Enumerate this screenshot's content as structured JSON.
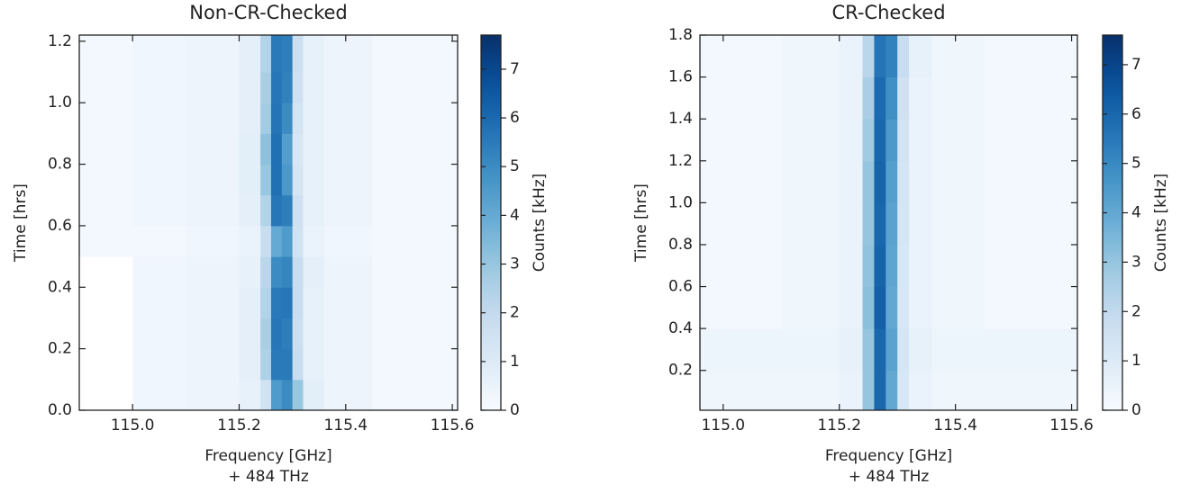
{
  "chart_data": [
    {
      "type": "heatmap",
      "title": "Non-CR-Checked",
      "xlabel": "Frequency [GHz]",
      "xlabel_offset": "+ 484 THz",
      "ylabel": "Time [hrs]",
      "colorbar_label": "Counts [kHz]",
      "colormap": "Blues",
      "xlim": [
        114.9,
        115.61
      ],
      "ylim": [
        0,
        1.22
      ],
      "clim": [
        0,
        7.7
      ],
      "xticks": [
        {
          "value": 115.0,
          "label": "115.0"
        },
        115.2,
        115.4,
        115.6
      ],
      "yticks": [
        {
          "value": 0,
          "label": "0.0"
        },
        0.2,
        0.4,
        0.6,
        0.8,
        {
          "value": 1,
          "label": "1.0"
        },
        1.2
      ],
      "cticks": [
        0,
        1,
        2,
        3,
        4,
        5,
        6,
        7
      ],
      "x_edges": [
        114.9,
        115.0,
        115.1,
        115.2,
        115.24,
        115.26,
        115.28,
        115.3,
        115.32,
        115.36,
        115.45,
        115.61
      ],
      "y_edges": [
        0,
        0.1,
        0.2,
        0.3,
        0.4,
        0.5,
        0.6,
        0.7,
        0.8,
        0.9,
        1.0,
        1.1,
        1.22
      ],
      "values": [
        [
          null,
          0.3,
          0.4,
          0.6,
          1.5,
          4.5,
          5.0,
          3.0,
          0.8,
          0.4,
          0.2
        ],
        [
          null,
          0.3,
          0.4,
          0.7,
          2.5,
          5.5,
          5.5,
          1.8,
          0.6,
          0.4,
          0.2
        ],
        [
          null,
          0.3,
          0.4,
          0.7,
          2.6,
          5.6,
          5.4,
          1.7,
          0.6,
          0.4,
          0.2
        ],
        [
          null,
          0.3,
          0.4,
          0.7,
          2.4,
          5.5,
          5.6,
          1.8,
          0.6,
          0.4,
          0.2
        ],
        [
          null,
          0.3,
          0.4,
          0.6,
          2.2,
          5.0,
          5.2,
          1.8,
          0.7,
          0.4,
          0.2
        ],
        [
          0.2,
          0.2,
          0.3,
          0.5,
          1.8,
          4.0,
          4.5,
          1.5,
          0.5,
          0.3,
          0.2
        ],
        [
          0.2,
          0.3,
          0.4,
          0.7,
          2.4,
          5.6,
          5.4,
          1.6,
          0.6,
          0.4,
          0.2
        ],
        [
          0.2,
          0.3,
          0.4,
          0.8,
          3.0,
          5.8,
          4.6,
          1.3,
          0.6,
          0.4,
          0.2
        ],
        [
          0.2,
          0.3,
          0.4,
          0.8,
          3.2,
          5.8,
          4.4,
          1.2,
          0.6,
          0.4,
          0.2
        ],
        [
          0.2,
          0.3,
          0.4,
          0.7,
          2.8,
          5.7,
          5.0,
          1.4,
          0.6,
          0.4,
          0.2
        ],
        [
          0.2,
          0.3,
          0.4,
          0.7,
          2.6,
          5.6,
          5.3,
          1.6,
          0.6,
          0.4,
          0.2
        ],
        [
          0.2,
          0.3,
          0.4,
          0.7,
          2.4,
          5.5,
          5.4,
          1.7,
          0.6,
          0.4,
          0.2
        ]
      ]
    },
    {
      "type": "heatmap",
      "title": "CR-Checked",
      "xlabel": "Frequency [GHz]",
      "xlabel_offset": "+ 484 THz",
      "ylabel": "Time [hrs]",
      "colorbar_label": "Counts [kHz]",
      "colormap": "Blues",
      "xlim": [
        114.96,
        115.61
      ],
      "ylim": [
        0.01,
        1.8
      ],
      "clim": [
        0,
        7.6
      ],
      "xticks": [
        {
          "value": 115.0,
          "label": "115.0"
        },
        115.2,
        115.4,
        115.6
      ],
      "yticks": [
        0.2,
        0.4,
        0.6,
        0.8,
        {
          "value": 1,
          "label": "1.0"
        },
        1.2,
        1.4,
        1.6,
        1.8
      ],
      "cticks": [
        0,
        1,
        2,
        3,
        4,
        5,
        6,
        7
      ],
      "x_edges": [
        114.96,
        115.0,
        115.1,
        115.2,
        115.24,
        115.26,
        115.28,
        115.3,
        115.32,
        115.36,
        115.45,
        115.61
      ],
      "y_edges": [
        0.01,
        0.2,
        0.4,
        0.6,
        0.8,
        1.0,
        1.2,
        1.4,
        1.6,
        1.8
      ],
      "values": [
        [
          0.3,
          0.3,
          0.3,
          0.5,
          3.0,
          6.0,
          4.0,
          1.2,
          0.5,
          0.3,
          0.3
        ],
        [
          0.4,
          0.4,
          0.4,
          0.6,
          3.0,
          6.0,
          4.2,
          1.3,
          0.6,
          0.4,
          0.4
        ],
        [
          0.2,
          0.2,
          0.3,
          0.5,
          3.2,
          6.2,
          4.0,
          1.2,
          0.5,
          0.3,
          0.2
        ],
        [
          0.2,
          0.2,
          0.3,
          0.5,
          3.1,
          6.1,
          4.1,
          1.2,
          0.5,
          0.3,
          0.2
        ],
        [
          0.2,
          0.2,
          0.3,
          0.5,
          3.0,
          6.0,
          4.2,
          1.3,
          0.5,
          0.3,
          0.2
        ],
        [
          0.2,
          0.2,
          0.3,
          0.5,
          3.0,
          6.1,
          4.3,
          1.3,
          0.5,
          0.3,
          0.2
        ],
        [
          0.2,
          0.2,
          0.3,
          0.5,
          2.8,
          6.0,
          4.5,
          1.4,
          0.5,
          0.3,
          0.2
        ],
        [
          0.2,
          0.2,
          0.3,
          0.5,
          2.6,
          5.9,
          4.8,
          1.5,
          0.5,
          0.3,
          0.2
        ],
        [
          0.2,
          0.2,
          0.3,
          0.5,
          2.2,
          5.6,
          5.2,
          1.8,
          0.6,
          0.3,
          0.2
        ]
      ]
    }
  ]
}
